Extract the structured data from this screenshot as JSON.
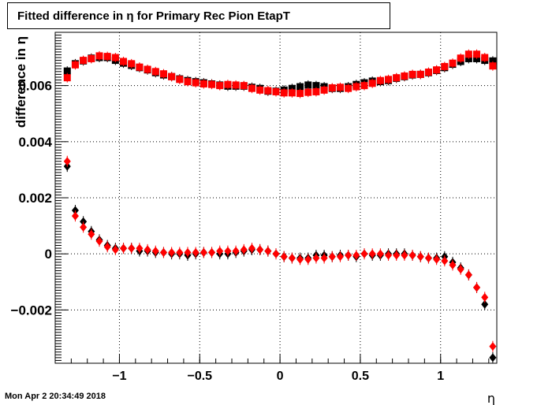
{
  "title": "Fitted difference in  η for Primary Rec Pion EtapT",
  "timestamp": "Mon Apr  2 20:34:49 2018",
  "chart_data": {
    "type": "scatter",
    "xlabel": "η",
    "ylabel": "difference in  η",
    "xlim": [
      -1.4,
      1.35
    ],
    "ylim": [
      -0.0039,
      0.0079
    ],
    "x_ticks": [
      -1,
      -0.5,
      0,
      0.5,
      1
    ],
    "x_tick_labels": [
      "−1",
      "−0.5",
      "0",
      "0.5",
      "1"
    ],
    "y_ticks": [
      -0.002,
      0,
      0.002,
      0.004,
      0.006
    ],
    "y_tick_labels": [
      "−0.002",
      "0",
      "0.002",
      "0.004",
      "0.006"
    ],
    "grid": true,
    "x": [
      -1.325,
      -1.275,
      -1.225,
      -1.175,
      -1.125,
      -1.075,
      -1.025,
      -0.975,
      -0.925,
      -0.875,
      -0.825,
      -0.775,
      -0.725,
      -0.675,
      -0.625,
      -0.575,
      -0.525,
      -0.475,
      -0.425,
      -0.375,
      -0.325,
      -0.275,
      -0.225,
      -0.175,
      -0.125,
      -0.075,
      -0.025,
      0.025,
      0.075,
      0.125,
      0.175,
      0.225,
      0.275,
      0.325,
      0.375,
      0.425,
      0.475,
      0.525,
      0.575,
      0.625,
      0.675,
      0.725,
      0.775,
      0.825,
      0.875,
      0.925,
      0.975,
      1.025,
      1.075,
      1.125,
      1.175,
      1.225,
      1.275,
      1.325
    ],
    "series": [
      {
        "marker": "square",
        "color": "#000000",
        "values": [
          0.00652,
          0.00678,
          0.00688,
          0.00698,
          0.007,
          0.007,
          0.0069,
          0.0068,
          0.00672,
          0.00664,
          0.00656,
          0.00646,
          0.00638,
          0.00632,
          0.00624,
          0.00618,
          0.00614,
          0.0061,
          0.00606,
          0.00602,
          0.00598,
          0.00598,
          0.00598,
          0.00594,
          0.0059,
          0.0058,
          0.0058,
          0.00584,
          0.0059,
          0.00596,
          0.00602,
          0.006,
          0.00596,
          0.0059,
          0.0059,
          0.00596,
          0.00604,
          0.0061,
          0.00616,
          0.00614,
          0.00618,
          0.00626,
          0.00632,
          0.00638,
          0.0064,
          0.00646,
          0.00654,
          0.00664,
          0.00676,
          0.00686,
          0.00696,
          0.00696,
          0.0069,
          0.00688
        ]
      },
      {
        "marker": "square",
        "color": "#ff0000",
        "values": [
          0.00628,
          0.00674,
          0.0069,
          0.00696,
          0.00706,
          0.00704,
          0.007,
          0.00686,
          0.00678,
          0.00666,
          0.00658,
          0.0065,
          0.00642,
          0.00632,
          0.00622,
          0.00614,
          0.0061,
          0.00606,
          0.00604,
          0.006,
          0.00604,
          0.00602,
          0.006,
          0.0059,
          0.00584,
          0.00582,
          0.00578,
          0.00574,
          0.00574,
          0.00572,
          0.00576,
          0.00578,
          0.00584,
          0.00592,
          0.00594,
          0.0059,
          0.00596,
          0.006,
          0.00608,
          0.00618,
          0.00622,
          0.00628,
          0.00634,
          0.0064,
          0.0064,
          0.00648,
          0.00656,
          0.00668,
          0.0068,
          0.00698,
          0.00712,
          0.00712,
          0.007,
          0.0067
        ]
      },
      {
        "marker": "diamond",
        "color": "#000000",
        "values": [
          0.00312,
          0.00155,
          0.00115,
          0.0008,
          0.0005,
          0.0003,
          0.0002,
          0.0002,
          0.0002,
          0.0001,
          0.0001,
          5e-05,
          5e-05,
          0.0,
          0.0,
          -5e-05,
          0.0,
          5e-05,
          5e-05,
          0.0,
          0.0,
          5e-05,
          0.0001,
          0.00015,
          0.00015,
          0.0001,
          0.0,
          -0.0001,
          -0.00015,
          -0.00015,
          -0.00015,
          -5e-05,
          -5e-05,
          -0.0001,
          -5e-05,
          -5e-05,
          -0.0001,
          0.0,
          -5e-05,
          -5e-05,
          0.0,
          0.0,
          0.0,
          -5e-05,
          -0.0001,
          -0.00015,
          -0.00015,
          -0.0001,
          -0.0003,
          -0.0005,
          -0.00075,
          -0.0012,
          -0.0018,
          -0.0037
        ]
      },
      {
        "marker": "diamond",
        "color": "#ff0000",
        "values": [
          0.0033,
          0.00135,
          0.00095,
          0.0007,
          0.00045,
          0.00025,
          0.00015,
          0.0002,
          0.0002,
          0.0002,
          0.00015,
          0.0001,
          5e-05,
          5e-05,
          5e-05,
          5e-05,
          5e-05,
          5e-05,
          5e-05,
          0.0001,
          0.0001,
          0.0001,
          0.00015,
          0.0002,
          0.00015,
          0.0001,
          0.0,
          -0.0001,
          -0.00015,
          -0.0002,
          -0.0002,
          -0.00015,
          -0.00015,
          -0.0001,
          -0.0001,
          -5e-05,
          -5e-05,
          0.0,
          0.0,
          0.0,
          -5e-05,
          -5e-05,
          -5e-05,
          -5e-05,
          -0.0001,
          -0.00015,
          -0.0002,
          -0.00025,
          -0.0004,
          -0.00055,
          -0.00075,
          -0.0012,
          -0.00155,
          -0.0033
        ]
      }
    ]
  }
}
